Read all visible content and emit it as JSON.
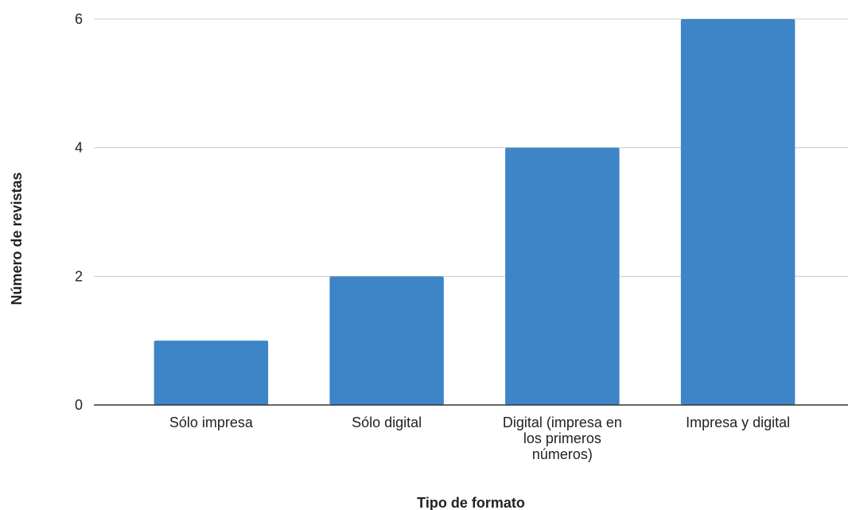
{
  "chart_data": {
    "type": "bar",
    "x_label": "Tipo de formato",
    "y_label": "Número de revistas",
    "categories": [
      "Sólo impresa",
      "Sólo digital",
      "Digital (impresa en los primeros números)",
      "Impresa y digital"
    ],
    "values": [
      1,
      2,
      4,
      6
    ],
    "color": "#3d85c6",
    "ylim": [
      0,
      6
    ],
    "yticks": [
      0,
      2,
      4,
      6
    ],
    "grid": true
  }
}
